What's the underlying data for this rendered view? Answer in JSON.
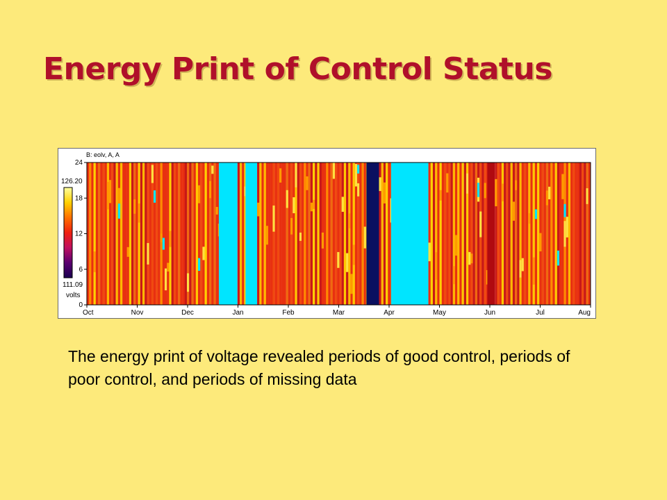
{
  "slide": {
    "title": "Energy Print of Control Status",
    "caption": "The energy print of voltage revealed periods of good control, periods of poor control, and periods of missing data",
    "background": "#fdea7b",
    "title_color": "#b0102a"
  },
  "chart_data": {
    "type": "heatmap",
    "title": "B: eolv, A, A",
    "xlabel": "",
    "ylabel": "",
    "x_categories": [
      "Oct",
      "Nov",
      "Dec",
      "Jan",
      "Feb",
      "Mar",
      "Apr",
      "May",
      "Jun",
      "Jul",
      "Aug"
    ],
    "y_ticks": [
      0,
      6,
      12,
      18,
      24
    ],
    "ylim": [
      0,
      24
    ],
    "colorbar": {
      "max": "126.20",
      "min": "111.09",
      "unit": "volts",
      "range": [
        111.09,
        126.2
      ],
      "colormap": [
        "#1a0050",
        "#5a0070",
        "#c01060",
        "#f02010",
        "#ff7000",
        "#ffd000",
        "#ffffa0"
      ]
    },
    "missing_color": "#00e5ff",
    "periods": [
      {
        "start": 0.0,
        "end": 2.62,
        "pattern": "stripe-orange-yellow"
      },
      {
        "start": 2.62,
        "end": 2.99,
        "pattern": "missing"
      },
      {
        "start": 2.99,
        "end": 3.15,
        "pattern": "stripe-orange-yellow"
      },
      {
        "start": 3.15,
        "end": 3.38,
        "pattern": "missing"
      },
      {
        "start": 3.38,
        "end": 5.55,
        "pattern": "stripe-orange-yellow"
      },
      {
        "start": 5.55,
        "end": 5.8,
        "pattern": "low-voltage"
      },
      {
        "start": 5.8,
        "end": 6.04,
        "pattern": "stripe-orange-yellow"
      },
      {
        "start": 6.04,
        "end": 6.78,
        "pattern": "missing"
      },
      {
        "start": 6.78,
        "end": 7.95,
        "pattern": "stripe-orange-yellow"
      },
      {
        "start": 7.95,
        "end": 8.1,
        "pattern": "dark-red"
      },
      {
        "start": 8.1,
        "end": 10.0,
        "pattern": "stripe-orange-yellow"
      }
    ]
  }
}
